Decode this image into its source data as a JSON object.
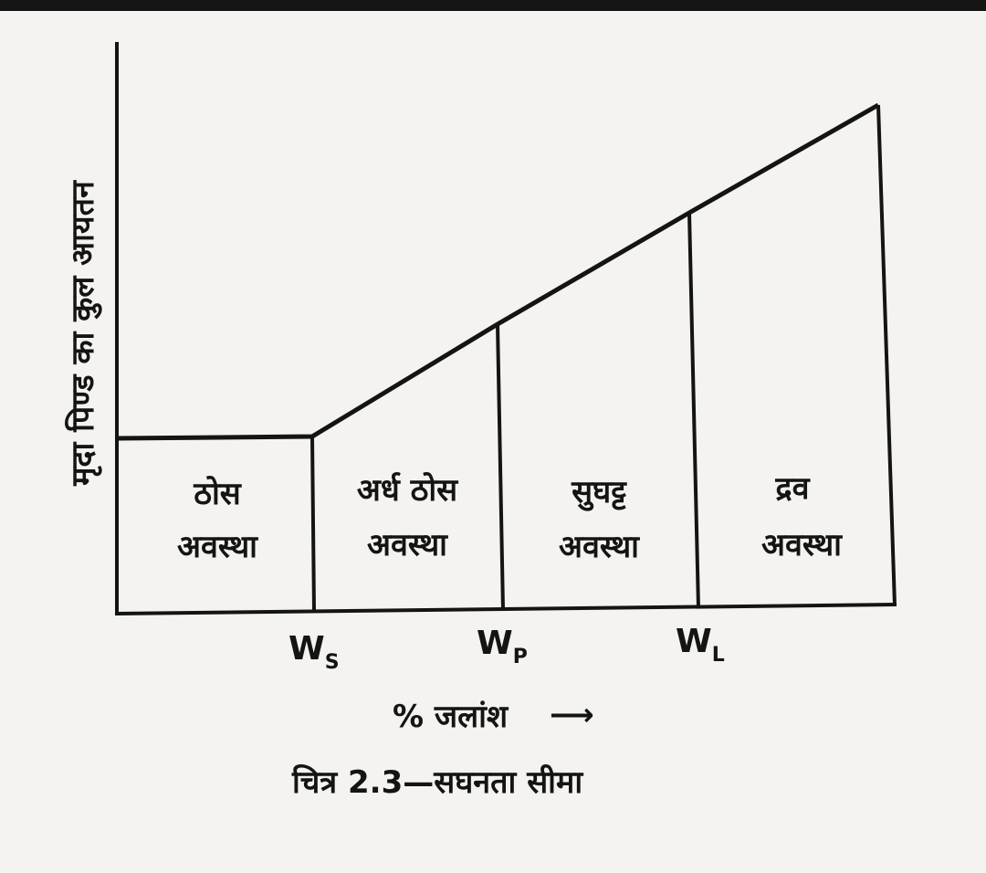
{
  "figure": {
    "y_axis_label": "मृदा पिण्ड का कुल आयतन",
    "x_axis_label": "% जलांश",
    "x_axis_arrow": "⟶",
    "caption": "चित्र 2.3—सघनता सीमा",
    "regions": [
      {
        "line1": "ठोस",
        "line2": "अवस्था"
      },
      {
        "line1": "अर्ध ठोस",
        "line2": "अवस्था"
      },
      {
        "line1": "सुघट्ट",
        "line2": "अवस्था"
      },
      {
        "line1": "द्रव",
        "line2": "अवस्था"
      }
    ],
    "limits": [
      {
        "base": "W",
        "sub": "S"
      },
      {
        "base": "W",
        "sub": "P"
      },
      {
        "base": "W",
        "sub": "L"
      }
    ]
  }
}
